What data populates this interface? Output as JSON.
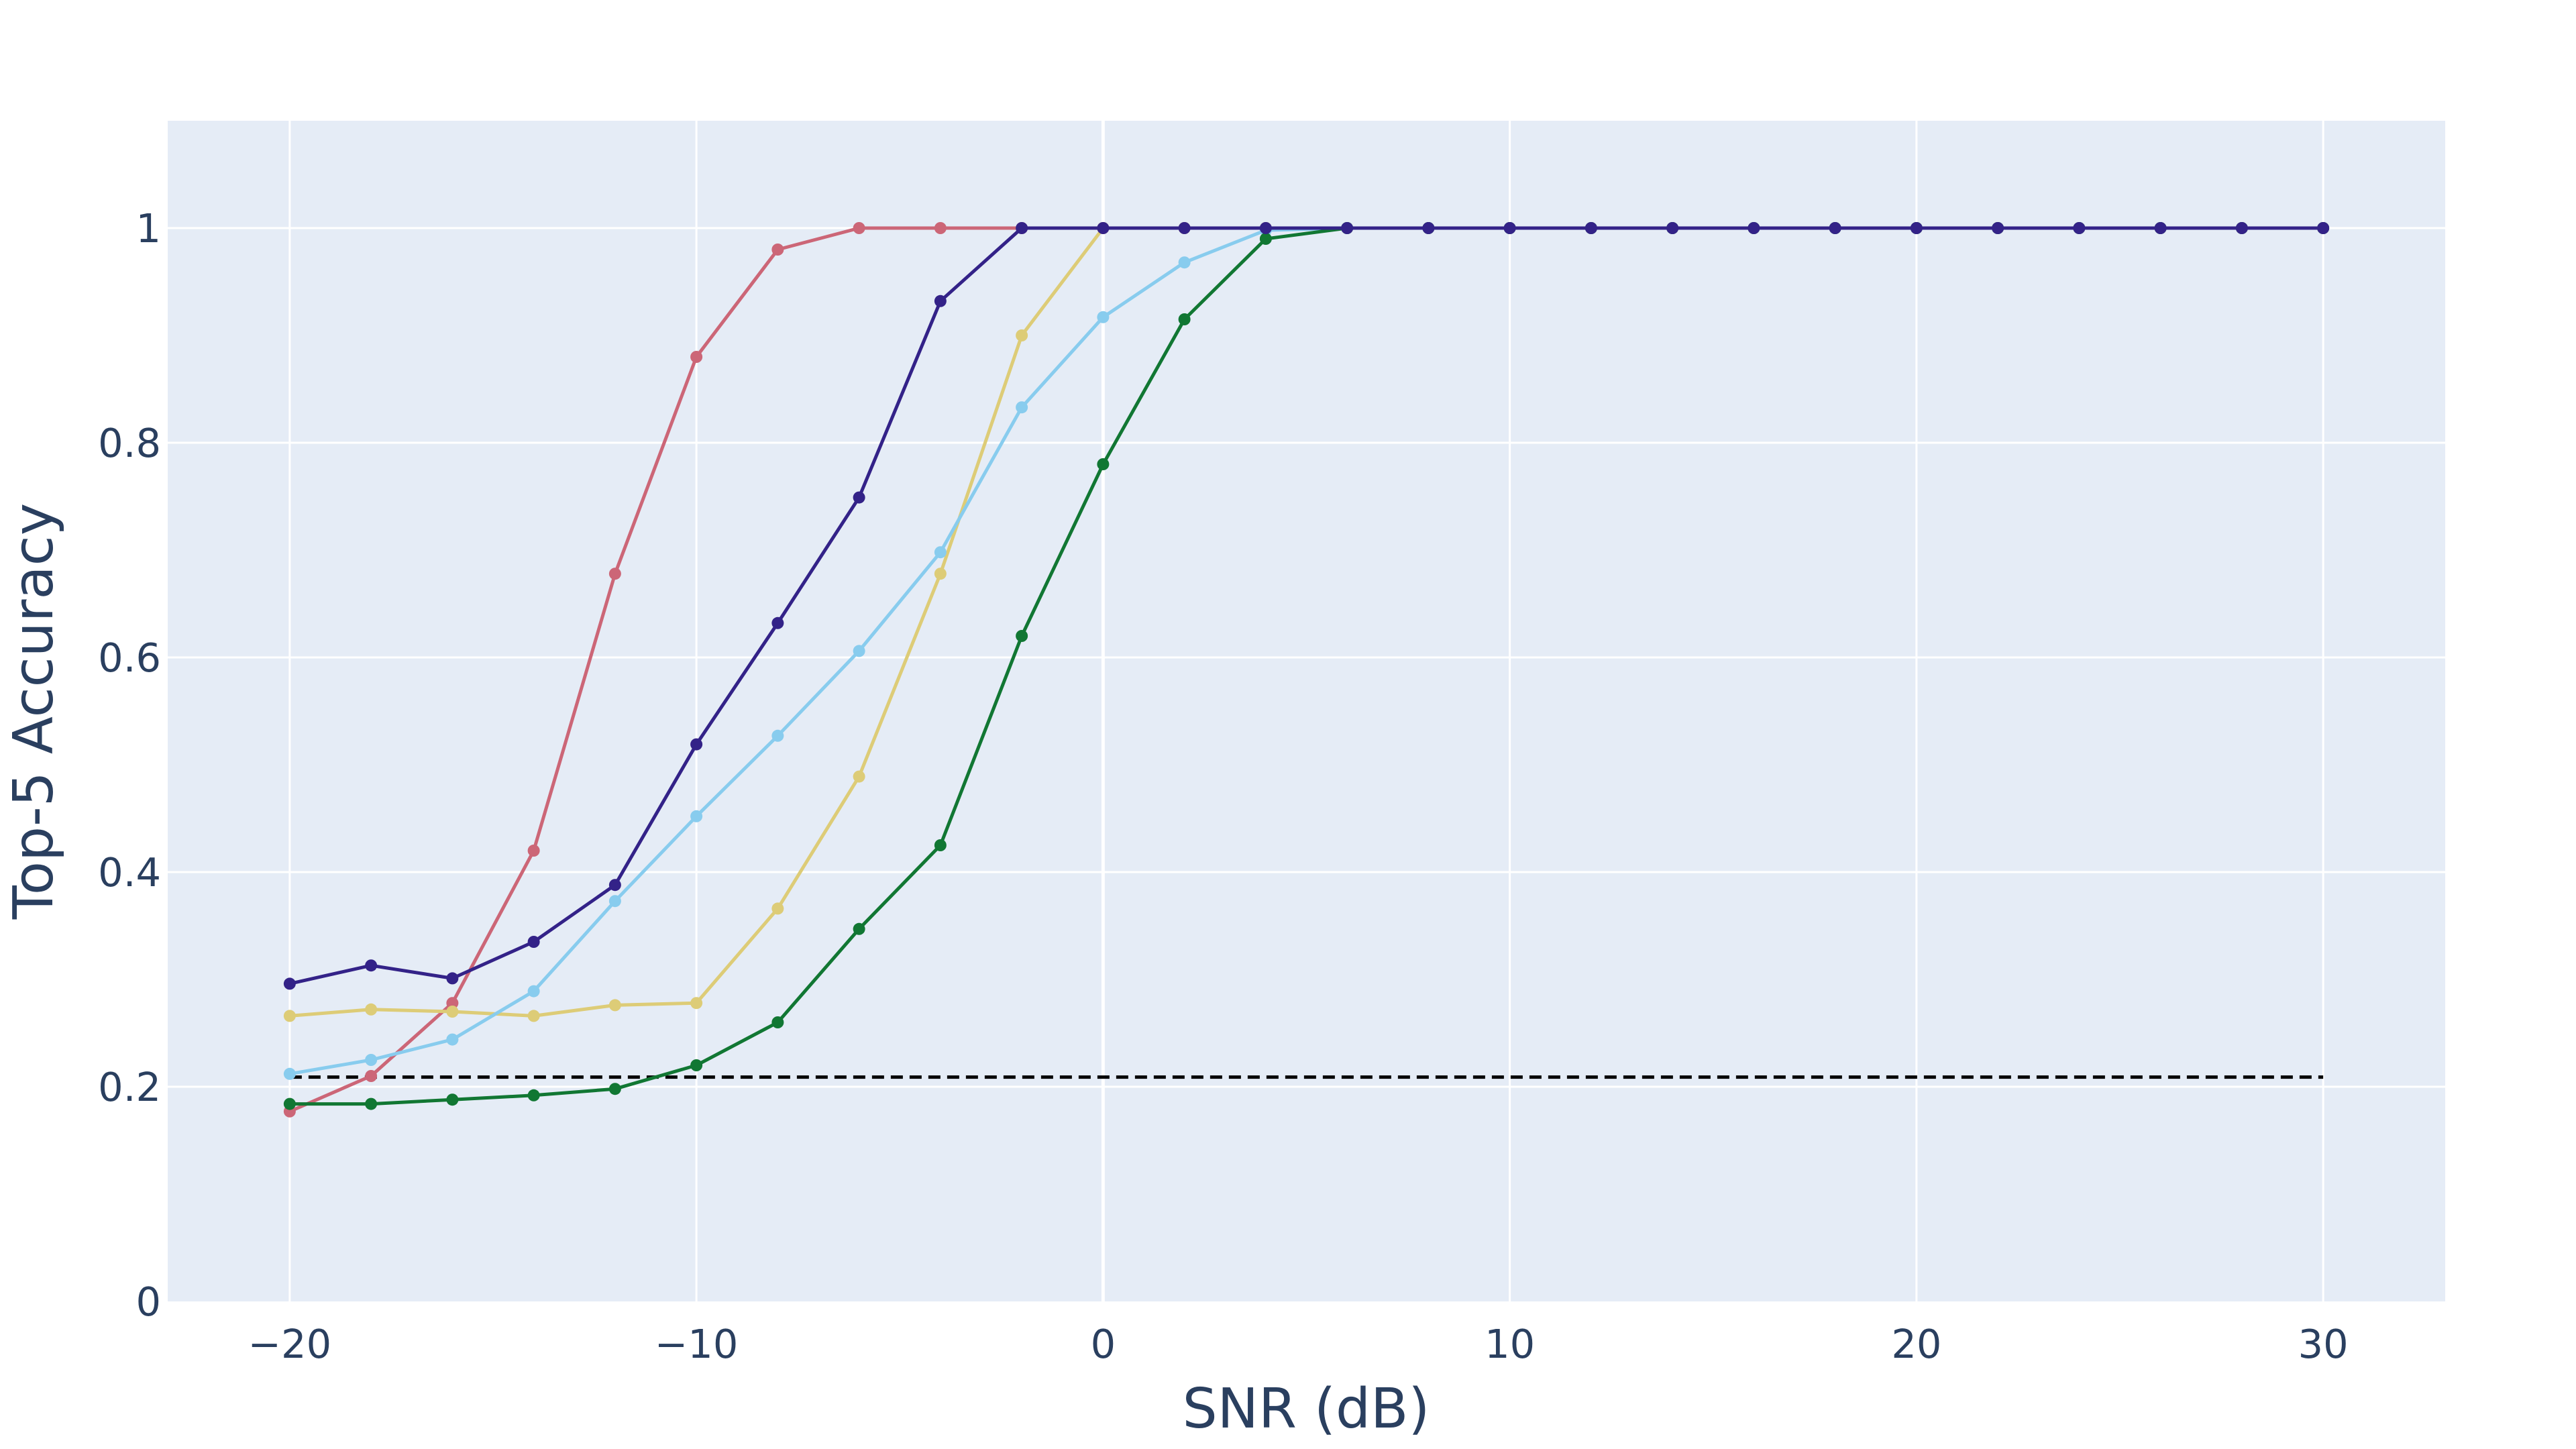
{
  "chart_data": {
    "type": "line",
    "title": "",
    "xlabel": "SNR (dB)",
    "ylabel": "Top-5 Accuracy",
    "xlim": [
      -23,
      33
    ],
    "ylim": [
      0,
      1.1
    ],
    "x_ticks": [
      -20,
      -10,
      0,
      10,
      20,
      30
    ],
    "x_tick_labels": [
      "−20",
      "−10",
      "0",
      "10",
      "20",
      "30"
    ],
    "y_ticks": [
      0,
      0.2,
      0.4,
      0.6,
      0.8,
      1
    ],
    "y_tick_labels": [
      "0",
      "0.2",
      "0.4",
      "0.6",
      "0.8",
      "1"
    ],
    "grid": true,
    "plot_bgcolor": "#e5ecf6",
    "x": [
      -20,
      -18,
      -16,
      -14,
      -12,
      -10,
      -8,
      -6,
      -4,
      -2,
      0,
      2,
      4,
      6,
      8,
      10,
      12,
      14,
      16,
      18,
      20,
      22,
      24,
      26,
      28,
      30
    ],
    "series": [
      {
        "color": "#cc6677",
        "values": [
          0.177,
          0.21,
          0.278,
          0.42,
          0.678,
          0.88,
          0.98,
          1.0,
          1.0,
          1.0,
          1.0,
          1.0,
          1.0,
          1.0,
          1.0,
          1.0,
          1.0,
          1.0,
          1.0,
          1.0,
          1.0,
          1.0,
          1.0,
          1.0,
          1.0,
          1.0
        ]
      },
      {
        "color": "#ddcc77",
        "values": [
          0.266,
          0.272,
          0.27,
          0.266,
          0.276,
          0.278,
          0.366,
          0.489,
          0.678,
          0.9,
          1.0,
          1.0,
          1.0,
          1.0,
          1.0,
          1.0,
          1.0,
          1.0,
          1.0,
          1.0,
          1.0,
          1.0,
          1.0,
          1.0,
          1.0,
          1.0
        ]
      },
      {
        "color": "#88ccee",
        "values": [
          0.212,
          0.225,
          0.244,
          0.289,
          0.373,
          0.452,
          0.527,
          0.606,
          0.698,
          0.833,
          0.917,
          0.968,
          0.998,
          1.0,
          1.0,
          1.0,
          1.0,
          1.0,
          1.0,
          1.0,
          1.0,
          1.0,
          1.0,
          1.0,
          1.0,
          1.0
        ]
      },
      {
        "color": "#117733",
        "values": [
          0.184,
          0.184,
          0.188,
          0.192,
          0.198,
          0.22,
          0.26,
          0.347,
          0.425,
          0.62,
          0.78,
          0.915,
          0.99,
          1.0,
          1.0,
          1.0,
          1.0,
          1.0,
          1.0,
          1.0,
          1.0,
          1.0,
          1.0,
          1.0,
          1.0,
          1.0
        ]
      },
      {
        "color": "#332288",
        "values": [
          0.296,
          0.313,
          0.301,
          0.335,
          0.388,
          0.519,
          0.632,
          0.749,
          0.932,
          1.0,
          1.0,
          1.0,
          1.0,
          1.0,
          1.0,
          1.0,
          1.0,
          1.0,
          1.0,
          1.0,
          1.0,
          1.0,
          1.0,
          1.0,
          1.0,
          1.0
        ]
      }
    ],
    "reference_line": {
      "style": "dashed",
      "color": "#000000",
      "x": [
        -20,
        30
      ],
      "y": 0.209
    }
  }
}
